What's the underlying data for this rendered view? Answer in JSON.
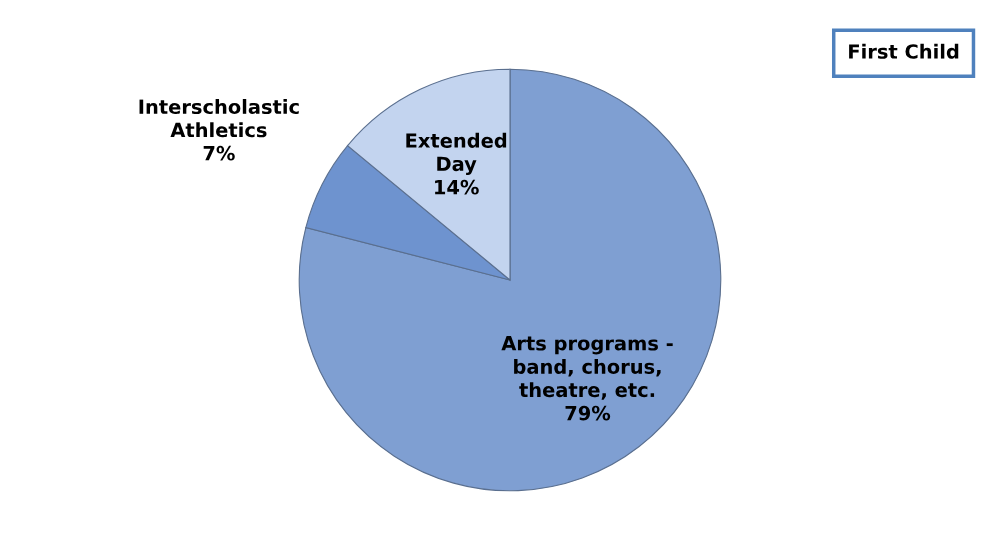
{
  "chart_data": {
    "type": "pie",
    "title": "First Child",
    "categories": [
      "Arts programs -\nband, chorus,\ntheatre, etc.",
      "Interscholastic\nAthletics",
      "Extended\nDay"
    ],
    "values": [
      79,
      7,
      14
    ],
    "value_labels": [
      "79%",
      "7%",
      "14%"
    ],
    "colors": [
      "#7f9fd2",
      "#6e93cf",
      "#c3d4ef"
    ],
    "legend": false
  }
}
